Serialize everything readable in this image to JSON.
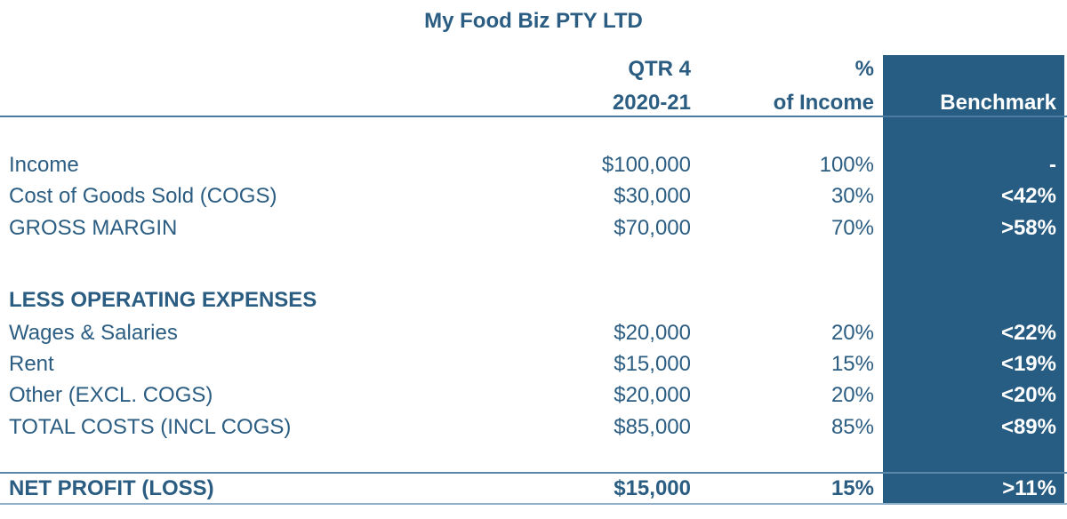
{
  "title": "My Food Biz PTY LTD",
  "header": {
    "col_period_line1": "QTR 4",
    "col_period_line2": "2020-21",
    "col_pct_line1": "%",
    "col_pct_line2": "of Income",
    "col_benchmark": "Benchmark"
  },
  "rows": [
    {
      "label": "Income",
      "value": "$100,000",
      "pct": "100%",
      "benchmark": "-"
    },
    {
      "label": "Cost of Goods Sold (COGS)",
      "value": "$30,000",
      "pct": "30%",
      "benchmark": "<42%"
    },
    {
      "label": "GROSS MARGIN",
      "value": "$70,000",
      "pct": "70%",
      "benchmark": ">58%"
    },
    {
      "label": "LESS OPERATING EXPENSES"
    },
    {
      "label": "Wages & Salaries",
      "value": "$20,000",
      "pct": "20%",
      "benchmark": "<22%"
    },
    {
      "label": "Rent",
      "value": "$15,000",
      "pct": "15%",
      "benchmark": "<19%"
    },
    {
      "label": "Other (EXCL. COGS)",
      "value": "$20,000",
      "pct": "20%",
      "benchmark": "<20%"
    },
    {
      "label": "TOTAL COSTS (INCL COGS)",
      "value": "$85,000",
      "pct": "85%",
      "benchmark": "<89%"
    }
  ],
  "net_profit": {
    "label": "NET PROFIT (LOSS)",
    "value": "$15,000",
    "pct": "15%",
    "benchmark": ">11%"
  },
  "colors": {
    "text": "#2b5d82",
    "benchmark_bg": "#275d82",
    "benchmark_text": "#ffffff"
  }
}
